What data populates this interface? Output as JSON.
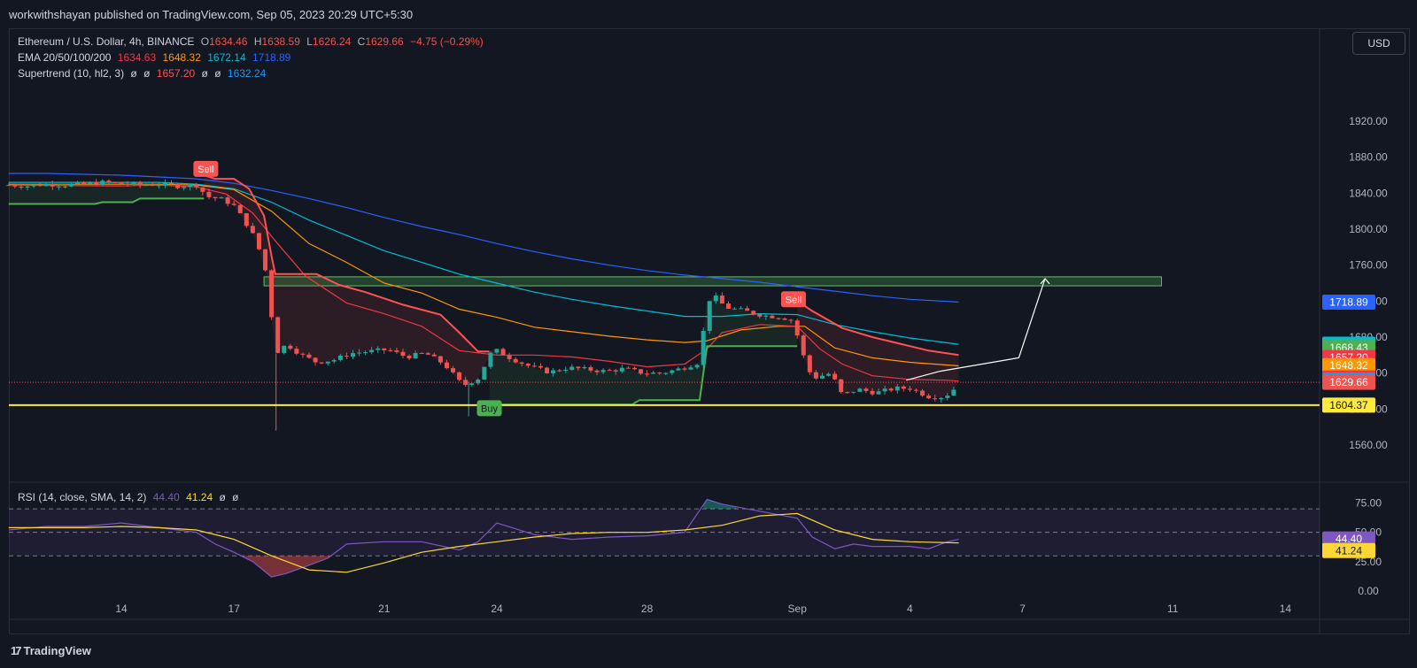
{
  "header": {
    "publisher": "workwithshayan published on TradingView.com, Sep 05, 2023 20:29 UTC+5:30"
  },
  "currency_button": "USD",
  "legend": {
    "symbol": "Ethereum / U.S. Dollar, 4h, BINANCE",
    "open_label": "O",
    "open": "1634.46",
    "high_label": "H",
    "high": "1638.59",
    "low_label": "L",
    "low": "1626.24",
    "close_label": "C",
    "close": "1629.66",
    "change": "−4.75 (−0.29%)",
    "ema_label": "EMA 20/50/100/200",
    "ema20": "1634.63",
    "ema50": "1648.32",
    "ema100": "1672.14",
    "ema200": "1718.89",
    "st_label": "Supertrend (10, hl2, 3)",
    "st_na": "ø",
    "st_up": "1657.20",
    "st_down": "1632.24",
    "rsi_label": "RSI (14, close, SMA, 14, 2)",
    "rsi_value": "44.40",
    "rsi_sma": "41.24",
    "rsi_na": "ø"
  },
  "footer": {
    "brand": "TradingView",
    "logo_mark": "17"
  },
  "colors": {
    "background": "#131722",
    "up": "#26a69a",
    "down": "#ef5350",
    "ema20": "#f23645",
    "ema50": "#ff9800",
    "ema100": "#00bcd4",
    "ema200": "#2962ff",
    "st_up": "#4caf50",
    "st_down": "#ff5252",
    "support": "#ffeb3b",
    "zone": "#4caf50",
    "rsi": "#7e57c2",
    "rsi_sma": "#fdd835"
  },
  "chart_data": [
    {
      "type": "candlestick",
      "title": "Ethereum / U.S. Dollar, 4h, BINANCE",
      "ylim": [
        1530,
        1960
      ],
      "y_ticks": [
        1560,
        1600,
        1640,
        1680,
        1720,
        1760,
        1800,
        1840,
        1880,
        1920
      ],
      "y_tick_labels": [
        "1560.00",
        "1600.00",
        "1640.00",
        "1680.00",
        "1720.00",
        "1760.00",
        "1800.00",
        "1840.00",
        "1880.00",
        "1920.00"
      ],
      "x_ticks": [
        {
          "t": 14,
          "label": "14"
        },
        {
          "t": 17,
          "label": "17"
        },
        {
          "t": 21,
          "label": "21"
        },
        {
          "t": 24,
          "label": "24"
        },
        {
          "t": 28,
          "label": "28"
        },
        {
          "t": 32,
          "label": "Sep"
        },
        {
          "t": 35,
          "label": "4"
        },
        {
          "t": 38,
          "label": "7"
        },
        {
          "t": 42,
          "label": "11"
        },
        {
          "t": 45,
          "label": "14"
        }
      ],
      "x_range_days": [
        11.0,
        45.7
      ],
      "price_labels": [
        {
          "value": 1718.89,
          "color": "#2962ff",
          "text": "1718.89"
        },
        {
          "value": 1672.14,
          "color": "#00bcd4",
          "text": "1672.14",
          "dark_text": true
        },
        {
          "value": 1668.43,
          "color": "#4caf50",
          "text": "1668.43"
        },
        {
          "value": 1657.2,
          "color": "#f23645",
          "text": "1657.20"
        },
        {
          "value": 1648.32,
          "color": "#ff9800",
          "text": "1648.32"
        },
        {
          "value": 1634.63,
          "color": "#f23645",
          "text": "1634.63"
        },
        {
          "value": 1632.24,
          "color": "#2196f3",
          "text": "1632.24"
        },
        {
          "value": 1629.66,
          "color": "#ef5350",
          "text": "1629.66"
        },
        {
          "value": 1604.37,
          "color": "#ffeb3b",
          "text": "1604.37",
          "dark_text": true
        }
      ],
      "support_line": 1604.37,
      "resistance_zone": [
        1737,
        1747
      ],
      "signals": [
        {
          "text": "Sell",
          "t": 16.25,
          "price": 1867
        },
        {
          "text": "Buy",
          "t": 23.8,
          "price": 1601
        },
        {
          "text": "Sell",
          "t": 31.9,
          "price": 1722
        }
      ],
      "projection": [
        [
          34.9,
          1632
        ],
        [
          35.8,
          1642
        ],
        [
          37.9,
          1657
        ],
        [
          38.6,
          1745
        ]
      ],
      "closes": [
        [
          11.0,
          1849
        ],
        [
          11.5,
          1848
        ],
        [
          12.0,
          1850
        ],
        [
          12.5,
          1849
        ],
        [
          13.0,
          1850
        ],
        [
          13.5,
          1852
        ],
        [
          14.0,
          1851
        ],
        [
          14.5,
          1849
        ],
        [
          15.0,
          1850
        ],
        [
          15.5,
          1848
        ],
        [
          16.0,
          1849
        ],
        [
          16.3,
          1836
        ],
        [
          16.7,
          1833
        ],
        [
          17.0,
          1826
        ],
        [
          17.3,
          1808
        ],
        [
          17.6,
          1787
        ],
        [
          17.9,
          1745
        ],
        [
          18.1,
          1662
        ],
        [
          18.4,
          1672
        ],
        [
          18.8,
          1660
        ],
        [
          19.2,
          1652
        ],
        [
          19.7,
          1655
        ],
        [
          20.1,
          1662
        ],
        [
          20.6,
          1664
        ],
        [
          21.1,
          1666
        ],
        [
          21.6,
          1658
        ],
        [
          22.1,
          1662
        ],
        [
          22.6,
          1650
        ],
        [
          23.1,
          1626
        ],
        [
          23.5,
          1634
        ],
        [
          23.9,
          1667
        ],
        [
          24.4,
          1656
        ],
        [
          24.9,
          1647
        ],
        [
          25.4,
          1641
        ],
        [
          25.9,
          1646
        ],
        [
          26.4,
          1644
        ],
        [
          26.9,
          1642
        ],
        [
          27.4,
          1645
        ],
        [
          27.9,
          1640
        ],
        [
          28.4,
          1640
        ],
        [
          28.9,
          1645
        ],
        [
          29.4,
          1652
        ],
        [
          29.6,
          1720
        ],
        [
          29.8,
          1725
        ],
        [
          30.1,
          1713
        ],
        [
          30.6,
          1709
        ],
        [
          31.1,
          1704
        ],
        [
          31.6,
          1702
        ],
        [
          31.9,
          1698
        ],
        [
          32.1,
          1666
        ],
        [
          32.4,
          1634
        ],
        [
          32.9,
          1640
        ],
        [
          33.2,
          1615
        ],
        [
          33.6,
          1622
        ],
        [
          34.1,
          1618
        ],
        [
          34.6,
          1623
        ],
        [
          35.0,
          1623
        ],
        [
          35.5,
          1614
        ],
        [
          35.8,
          1613
        ],
        [
          36.1,
          1618
        ],
        [
          36.3,
          1630
        ]
      ],
      "ema20": [
        [
          11.0,
          1849
        ],
        [
          14.0,
          1848
        ],
        [
          15.0,
          1849
        ],
        [
          16.0,
          1847
        ],
        [
          16.8,
          1839
        ],
        [
          17.5,
          1818
        ],
        [
          18.1,
          1787
        ],
        [
          18.9,
          1748
        ],
        [
          20.0,
          1718
        ],
        [
          21.0,
          1706
        ],
        [
          22.0,
          1692
        ],
        [
          23.0,
          1665
        ],
        [
          24.0,
          1660
        ],
        [
          25.0,
          1660
        ],
        [
          26.0,
          1658
        ],
        [
          27.0,
          1653
        ],
        [
          28.0,
          1647
        ],
        [
          29.0,
          1650
        ],
        [
          29.6,
          1667
        ],
        [
          30.0,
          1685
        ],
        [
          31.0,
          1694
        ],
        [
          32.0,
          1692
        ],
        [
          32.6,
          1667
        ],
        [
          33.2,
          1650
        ],
        [
          34.0,
          1637
        ],
        [
          35.0,
          1633
        ],
        [
          36.0,
          1632
        ],
        [
          36.3,
          1631
        ]
      ],
      "ema50": [
        [
          11.0,
          1850
        ],
        [
          14.0,
          1850
        ],
        [
          15.0,
          1850
        ],
        [
          16.0,
          1849
        ],
        [
          17.0,
          1844
        ],
        [
          18.0,
          1820
        ],
        [
          19.0,
          1784
        ],
        [
          20.0,
          1763
        ],
        [
          21.0,
          1740
        ],
        [
          22.0,
          1729
        ],
        [
          23.0,
          1711
        ],
        [
          24.0,
          1702
        ],
        [
          25.0,
          1691
        ],
        [
          26.0,
          1686
        ],
        [
          27.0,
          1681
        ],
        [
          28.0,
          1677
        ],
        [
          29.0,
          1674
        ],
        [
          29.6,
          1676
        ],
        [
          30.5,
          1688
        ],
        [
          31.5,
          1692
        ],
        [
          32.2,
          1692
        ],
        [
          33.0,
          1668
        ],
        [
          34.0,
          1657
        ],
        [
          35.0,
          1652
        ],
        [
          36.3,
          1648
        ]
      ],
      "ema100": [
        [
          11.0,
          1852
        ],
        [
          14.0,
          1852
        ],
        [
          15.0,
          1852
        ],
        [
          16.0,
          1850
        ],
        [
          17.0,
          1845
        ],
        [
          18.0,
          1830
        ],
        [
          19.0,
          1810
        ],
        [
          20.0,
          1793
        ],
        [
          21.0,
          1776
        ],
        [
          22.0,
          1763
        ],
        [
          23.0,
          1750
        ],
        [
          24.0,
          1740
        ],
        [
          25.0,
          1730
        ],
        [
          26.0,
          1722
        ],
        [
          27.0,
          1715
        ],
        [
          28.0,
          1709
        ],
        [
          29.0,
          1703
        ],
        [
          30.0,
          1703
        ],
        [
          31.0,
          1706
        ],
        [
          32.0,
          1705
        ],
        [
          33.0,
          1694
        ],
        [
          34.0,
          1686
        ],
        [
          35.0,
          1679
        ],
        [
          36.3,
          1672
        ]
      ],
      "ema200": [
        [
          11.0,
          1862
        ],
        [
          12.0,
          1862
        ],
        [
          13.0,
          1861
        ],
        [
          14.0,
          1860
        ],
        [
          15.0,
          1858
        ],
        [
          16.0,
          1856
        ],
        [
          17.0,
          1851
        ],
        [
          18.0,
          1843
        ],
        [
          19.0,
          1834
        ],
        [
          20.0,
          1824
        ],
        [
          21.0,
          1813
        ],
        [
          22.0,
          1803
        ],
        [
          23.0,
          1794
        ],
        [
          24.0,
          1784
        ],
        [
          25.0,
          1775
        ],
        [
          26.0,
          1767
        ],
        [
          27.0,
          1760
        ],
        [
          28.0,
          1754
        ],
        [
          29.0,
          1749
        ],
        [
          30.0,
          1745
        ],
        [
          31.0,
          1741
        ],
        [
          32.0,
          1736
        ],
        [
          33.0,
          1731
        ],
        [
          34.0,
          1726
        ],
        [
          35.0,
          1722
        ],
        [
          36.3,
          1719
        ]
      ],
      "supertrend_up": [
        [
          [
            11.0,
            1828
          ],
          [
            13.3,
            1828
          ],
          [
            13.5,
            1830
          ],
          [
            14.3,
            1830
          ],
          [
            14.5,
            1834
          ],
          [
            16.2,
            1834
          ]
        ],
        [
          [
            23.8,
            1605
          ],
          [
            27.6,
            1605
          ],
          [
            27.8,
            1610
          ],
          [
            29.4,
            1610
          ],
          [
            29.6,
            1670
          ],
          [
            32.0,
            1670
          ]
        ]
      ],
      "supertrend_down": [
        [
          [
            16.2,
            1860
          ],
          [
            16.5,
            1856
          ],
          [
            17.0,
            1856
          ],
          [
            17.4,
            1845
          ],
          [
            17.8,
            1815
          ],
          [
            18.0,
            1770
          ],
          [
            18.1,
            1750
          ],
          [
            19.2,
            1750
          ],
          [
            19.8,
            1738
          ],
          [
            20.5,
            1730
          ],
          [
            21.5,
            1716
          ],
          [
            22.5,
            1705
          ],
          [
            23.0,
            1685
          ],
          [
            23.5,
            1664
          ],
          [
            23.8,
            1664
          ]
        ],
        [
          [
            32.0,
            1720
          ],
          [
            32.4,
            1709
          ],
          [
            33.2,
            1690
          ],
          [
            34.0,
            1680
          ],
          [
            35.0,
            1670
          ],
          [
            35.5,
            1665
          ],
          [
            36.3,
            1660
          ]
        ]
      ]
    },
    {
      "type": "line",
      "title": "RSI (14, close, SMA, 14, 2)",
      "ylim": [
        0,
        100
      ],
      "y_ticks": [
        0,
        25,
        50,
        75
      ],
      "y_tick_labels": [
        "0.00",
        "25.00",
        "50.00",
        "75.00"
      ],
      "bands": [
        30,
        50,
        70
      ],
      "series": [
        {
          "name": "RSI",
          "color": "#7e57c2",
          "points": [
            [
              11.0,
              52
            ],
            [
              12.0,
              55
            ],
            [
              13.0,
              55
            ],
            [
              14.0,
              58
            ],
            [
              15.0,
              54
            ],
            [
              16.0,
              50
            ],
            [
              16.5,
              40
            ],
            [
              17.0,
              33
            ],
            [
              17.5,
              25
            ],
            [
              18.0,
              12
            ],
            [
              18.4,
              15
            ],
            [
              19.0,
              22
            ],
            [
              19.5,
              28
            ],
            [
              20.0,
              40
            ],
            [
              21.0,
              42
            ],
            [
              22.0,
              42
            ],
            [
              23.0,
              35
            ],
            [
              23.5,
              42
            ],
            [
              24.0,
              58
            ],
            [
              25.0,
              48
            ],
            [
              26.0,
              44
            ],
            [
              27.0,
              46
            ],
            [
              28.0,
              47
            ],
            [
              29.0,
              50
            ],
            [
              29.6,
              78
            ],
            [
              30.0,
              74
            ],
            [
              31.0,
              68
            ],
            [
              32.0,
              62
            ],
            [
              32.4,
              46
            ],
            [
              33.0,
              36
            ],
            [
              33.5,
              40
            ],
            [
              34.0,
              38
            ],
            [
              35.0,
              38
            ],
            [
              35.5,
              36
            ],
            [
              36.0,
              42
            ],
            [
              36.3,
              44
            ]
          ]
        },
        {
          "name": "SMA",
          "color": "#fdd835",
          "points": [
            [
              11.0,
              54
            ],
            [
              13.0,
              54
            ],
            [
              14.0,
              55
            ],
            [
              15.0,
              54
            ],
            [
              16.0,
              52
            ],
            [
              17.0,
              44
            ],
            [
              18.0,
              30
            ],
            [
              19.0,
              18
            ],
            [
              20.0,
              16
            ],
            [
              21.0,
              24
            ],
            [
              22.0,
              33
            ],
            [
              23.0,
              38
            ],
            [
              24.0,
              42
            ],
            [
              25.0,
              46
            ],
            [
              26.0,
              49
            ],
            [
              27.0,
              50
            ],
            [
              28.0,
              50
            ],
            [
              29.0,
              52
            ],
            [
              30.0,
              56
            ],
            [
              31.0,
              64
            ],
            [
              32.0,
              66
            ],
            [
              33.0,
              52
            ],
            [
              34.0,
              44
            ],
            [
              35.0,
              42
            ],
            [
              36.3,
              41
            ]
          ]
        }
      ]
    }
  ]
}
